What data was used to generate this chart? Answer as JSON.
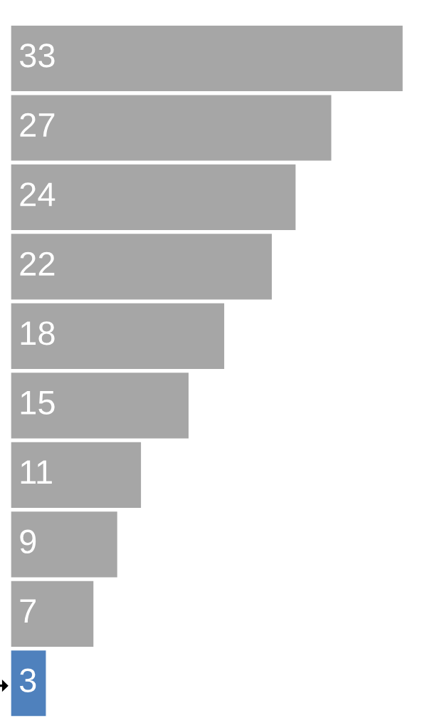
{
  "chart_data": {
    "type": "bar",
    "orientation": "horizontal",
    "categories": [
      null,
      null,
      null,
      null,
      null,
      null,
      null,
      null,
      null,
      null
    ],
    "values": [
      33,
      27,
      24,
      22,
      18,
      15,
      11,
      9,
      7,
      3
    ],
    "colors": [
      "#a6a6a6",
      "#a6a6a6",
      "#a6a6a6",
      "#a6a6a6",
      "#a6a6a6",
      "#a6a6a6",
      "#a6a6a6",
      "#a6a6a6",
      "#a6a6a6",
      "#4f81bd"
    ],
    "data_labels": true,
    "grid": false,
    "legend": false
  }
}
